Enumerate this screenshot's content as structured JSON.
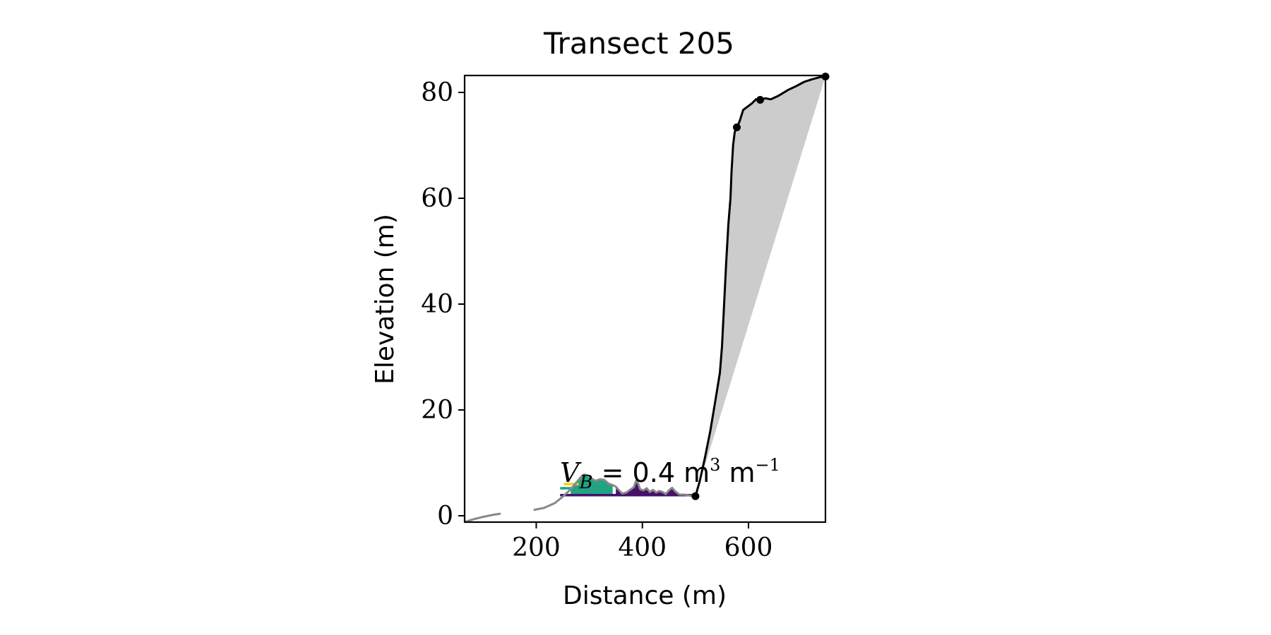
{
  "chart_data": {
    "type": "line",
    "title": "Transect 205",
    "xlabel": "Distance (m)",
    "ylabel": "Elevation (m)",
    "xlim": [
      65,
      745
    ],
    "ylim": [
      -1.2,
      83.2
    ],
    "xticks": [
      200,
      400,
      600
    ],
    "yticks": [
      0,
      20,
      40,
      60,
      80
    ],
    "grid": false,
    "annotation": {
      "var": "V",
      "sub": "B",
      "value": " = 0.4 m",
      "sup1": "3",
      "unit": " m",
      "sup2": "−1"
    },
    "series": [
      {
        "role": "offshore profile (gray)",
        "color": "#888888",
        "segments": [
          [
            [
              65,
              -1.2
            ],
            [
              80,
              -0.7
            ],
            [
              100,
              -0.2
            ],
            [
              120,
              0.2
            ],
            [
              133,
              0.4
            ]
          ],
          [
            [
              195,
              1.1
            ],
            [
              215,
              1.5
            ],
            [
              235,
              2.4
            ],
            [
              250,
              3.6
            ],
            [
              265,
              5.0
            ],
            [
              275,
              6.2
            ],
            [
              283,
              7.2
            ],
            [
              290,
              7.8
            ],
            [
              298,
              7.6
            ],
            [
              305,
              7.0
            ],
            [
              312,
              6.6
            ],
            [
              320,
              6.9
            ],
            [
              328,
              6.8
            ],
            [
              336,
              6.1
            ],
            [
              344,
              5.8
            ],
            [
              350,
              5.5
            ],
            [
              356,
              4.8
            ],
            [
              362,
              4.2
            ],
            [
              370,
              4.4
            ],
            [
              378,
              5.0
            ],
            [
              384,
              5.4
            ],
            [
              388,
              6.6
            ],
            [
              392,
              6.1
            ],
            [
              396,
              5.0
            ],
            [
              402,
              4.8
            ],
            [
              408,
              5.2
            ],
            [
              414,
              4.5
            ],
            [
              420,
              4.9
            ],
            [
              426,
              4.4
            ],
            [
              432,
              4.7
            ],
            [
              438,
              4.5
            ],
            [
              444,
              4.1
            ],
            [
              450,
              4.8
            ],
            [
              456,
              5.3
            ],
            [
              462,
              4.6
            ],
            [
              470,
              4.0
            ],
            [
              480,
              4.0
            ],
            [
              490,
              3.8
            ],
            [
              500,
              3.7
            ]
          ]
        ]
      },
      {
        "role": "cliff profile (black)",
        "color": "#000000",
        "points": [
          [
            500,
            3.7
          ],
          [
            508,
            6.5
          ],
          [
            518,
            11
          ],
          [
            528,
            16
          ],
          [
            538,
            22
          ],
          [
            546,
            27
          ],
          [
            550,
            32
          ],
          [
            554,
            40
          ],
          [
            558,
            48
          ],
          [
            562,
            55
          ],
          [
            566,
            60
          ],
          [
            568,
            65
          ],
          [
            571,
            70
          ],
          [
            574,
            72.5
          ],
          [
            578,
            73.4
          ],
          [
            583,
            74.5
          ],
          [
            590,
            76.7
          ],
          [
            598,
            77.3
          ],
          [
            606,
            77.9
          ],
          [
            614,
            78.7
          ],
          [
            622,
            78.6
          ],
          [
            632,
            78.9
          ],
          [
            642,
            78.7
          ],
          [
            655,
            79.3
          ],
          [
            665,
            79.9
          ],
          [
            675,
            80.5
          ],
          [
            690,
            81.2
          ],
          [
            705,
            82
          ],
          [
            720,
            82.5
          ],
          [
            735,
            82.9
          ],
          [
            745,
            83
          ]
        ]
      }
    ],
    "markers": [
      [
        500,
        3.7
      ],
      [
        578,
        73.4
      ],
      [
        622,
        78.6
      ],
      [
        745,
        83
      ]
    ],
    "fill_region": {
      "description": "gray area between cliff profile and straight line from toe to crest",
      "color": "#cccccc",
      "line": [
        [
          500,
          3.7
        ],
        [
          745,
          83
        ]
      ]
    },
    "barrier_fill": {
      "teal_color": "#21a384",
      "purple_color": "#46106a",
      "yellow_color": "#f0d020",
      "teal_range": [
        265,
        345
      ],
      "purple_range": [
        345,
        500
      ],
      "base_level": 3.7,
      "bars": [
        {
          "color": "#46106a",
          "x": [
            245,
            500
          ],
          "y": 3.9
        },
        {
          "color": "#21a384",
          "x": [
            245,
            340
          ],
          "y": 5.2
        },
        {
          "color": "#f0d020",
          "x": [
            252,
            280
          ],
          "y": 6.0
        }
      ]
    }
  }
}
